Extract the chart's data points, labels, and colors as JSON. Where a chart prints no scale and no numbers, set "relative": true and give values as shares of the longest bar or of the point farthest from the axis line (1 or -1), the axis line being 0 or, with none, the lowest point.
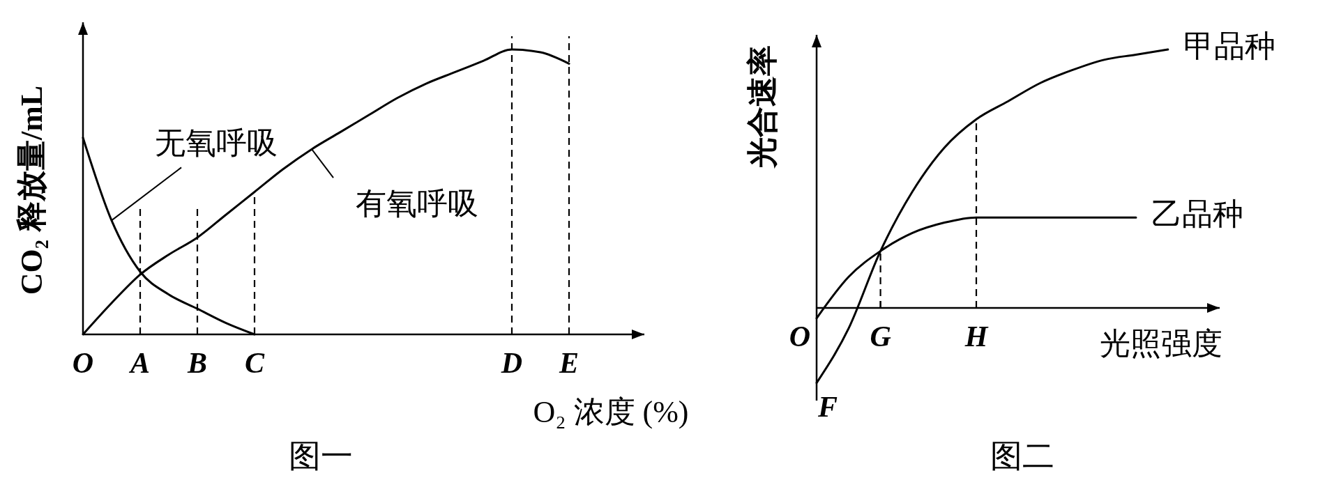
{
  "chart_data": [
    {
      "type": "line",
      "title": "图一",
      "xlabel": "O₂ 浓度 (%)",
      "ylabel": "CO₂ 释放量/mL",
      "relative": true,
      "categories": [
        "O",
        null,
        "A",
        null,
        "B",
        null,
        "C",
        null,
        null,
        null,
        null,
        null,
        null,
        null,
        null,
        "D",
        null,
        "E",
        null,
        null
      ],
      "series": [
        {
          "name": "无氧呼吸",
          "color": "#000000",
          "values": [
            0.69,
            0.4,
            0.22,
            0.14,
            0.09,
            0.04,
            0,
            null,
            null,
            null,
            null,
            null,
            null,
            null,
            null,
            null,
            null,
            null,
            null,
            null
          ]
        },
        {
          "name": "有氧呼吸",
          "color": "#000000",
          "values": [
            0,
            0.11,
            0.21,
            0.28,
            0.34,
            0.42,
            0.5,
            0.58,
            0.65,
            0.71,
            0.77,
            0.83,
            0.88,
            0.92,
            0.96,
            1,
            0.99,
            0.95,
            null,
            null
          ]
        }
      ],
      "ref_lines": [
        {
          "axis": "x",
          "value": "A",
          "label": null,
          "line_style": "dashed"
        },
        {
          "axis": "x",
          "value": "B",
          "label": null,
          "line_style": "dashed"
        },
        {
          "axis": "x",
          "value": "C",
          "label": null,
          "line_style": "dashed"
        },
        {
          "axis": "x",
          "value": "D",
          "label": null,
          "line_style": "dashed"
        },
        {
          "axis": "x",
          "value": "E",
          "label": null,
          "line_style": "dashed"
        }
      ]
    },
    {
      "type": "line",
      "title": "图二",
      "xlabel": "光照强度",
      "ylabel": "光合速率",
      "relative": true,
      "categories": [
        "O",
        null,
        "G",
        null,
        null,
        "H",
        null,
        null,
        null,
        null,
        null,
        null,
        null
      ],
      "series": [
        {
          "name": "甲品种",
          "color": "#000000",
          "values": [
            -0.29,
            -0.08,
            0.22,
            0.45,
            0.62,
            0.73,
            0.8,
            0.87,
            0.92,
            0.96,
            0.98,
            1,
            null
          ]
        },
        {
          "name": "乙品种",
          "color": "#000000",
          "values": [
            -0.04,
            0.12,
            0.22,
            0.29,
            0.33,
            0.35,
            0.35,
            0.35,
            0.35,
            0.35,
            0.35,
            null,
            null
          ]
        }
      ],
      "ref_lines": [
        {
          "axis": "x",
          "value": "G",
          "label": null,
          "line_style": "dashed"
        },
        {
          "axis": "x",
          "value": "H",
          "label": null,
          "line_style": "dashed"
        }
      ],
      "annotations": [
        {
          "text": "F",
          "x": "O",
          "y": -0.29
        }
      ]
    }
  ]
}
